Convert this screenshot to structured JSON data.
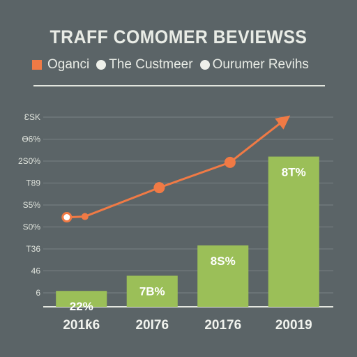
{
  "chart_data": {
    "type": "bar",
    "title": "TRAFF COMOMER BEVIEWSS",
    "legend": [
      {
        "label": "Oganci",
        "marker": "square",
        "color": "#f07a45"
      },
      {
        "label": "The Custmeer",
        "marker": "dot",
        "color": "#eef0ea"
      },
      {
        "label": "Ourumer Revihs",
        "marker": "dot",
        "color": "#eef0ea"
      }
    ],
    "y_tick_labels": [
      "ƐSK",
      "Ɵ6%",
      "2S0%",
      "T89",
      "S5%",
      "S0%",
      "T36",
      "46",
      "6"
    ],
    "categories": [
      "201ƙ6",
      "20Ɩ76",
      "20176",
      "20019"
    ],
    "series": [
      {
        "type": "bar",
        "color": "#9bbf58",
        "values": [
          2.2,
          4.3,
          8.5,
          20.8
        ],
        "data_labels": [
          "22%",
          "7B%",
          "8S%",
          "8T%"
        ]
      },
      {
        "type": "line",
        "color": "#f07a45",
        "points": [
          [
            0.55,
            12.5
          ],
          [
            1.6,
            16.5
          ],
          [
            2.6,
            20.0
          ],
          [
            3.45,
            26.5
          ]
        ]
      }
    ],
    "ylim": [
      0,
      28
    ],
    "grid": true
  }
}
